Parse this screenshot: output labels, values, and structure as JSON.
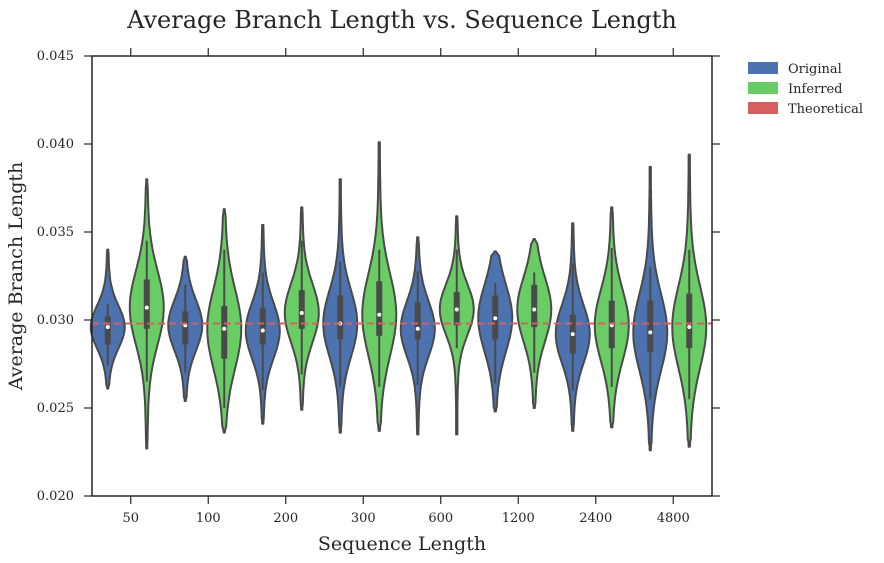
{
  "chart_data": {
    "type": "violin",
    "title": "Average Branch Length vs. Sequence Length",
    "xlabel": "Sequence Length",
    "ylabel": "Average Branch Length",
    "categories": [
      "50",
      "100",
      "200",
      "300",
      "600",
      "1200",
      "2400",
      "4800"
    ],
    "ylim": [
      0.02,
      0.045
    ],
    "yticks": [
      "0.020",
      "0.025",
      "0.030",
      "0.035",
      "0.040",
      "0.045"
    ],
    "grid": false,
    "legend_position": "outside-top-right",
    "reference_line": {
      "name": "Theoretical",
      "value": 0.0298,
      "color": "#d65f5f",
      "style": "dashed"
    },
    "series": [
      {
        "name": "Original",
        "color": "#4c72b0",
        "median": [
          0.0296,
          0.0297,
          0.0294,
          0.0298,
          0.0295,
          0.0301,
          0.0292,
          0.0293
        ],
        "q1": [
          0.0286,
          0.0286,
          0.0286,
          0.0289,
          0.0289,
          0.0289,
          0.0281,
          0.0282
        ],
        "q3": [
          0.0302,
          0.0305,
          0.0307,
          0.0314,
          0.031,
          0.0314,
          0.0303,
          0.0311
        ],
        "whisker_low": [
          0.0274,
          0.027,
          0.026,
          0.0262,
          0.0263,
          0.0264,
          0.026,
          0.0255
        ],
        "whisker_high": [
          0.0309,
          0.032,
          0.0327,
          0.0333,
          0.0328,
          0.0321,
          0.0332,
          0.033
        ],
        "min": [
          0.0261,
          0.0254,
          0.0241,
          0.0236,
          0.0235,
          0.0248,
          0.0237,
          0.0226
        ],
        "max": [
          0.034,
          0.0336,
          0.0354,
          0.038,
          0.0347,
          0.0339,
          0.0355,
          0.0387
        ]
      },
      {
        "name": "Inferred",
        "color": "#6acc65",
        "median": [
          0.0307,
          0.0295,
          0.0304,
          0.0303,
          0.0306,
          0.0306,
          0.0297,
          0.0296
        ],
        "q1": [
          0.0295,
          0.0278,
          0.0295,
          0.0291,
          0.0297,
          0.0296,
          0.0284,
          0.0284
        ],
        "q3": [
          0.0323,
          0.0308,
          0.0317,
          0.0322,
          0.0316,
          0.032,
          0.0311,
          0.0315
        ],
        "whisker_low": [
          0.0265,
          0.025,
          0.0269,
          0.0262,
          0.0284,
          0.027,
          0.0262,
          0.0255
        ],
        "whisker_high": [
          0.0345,
          0.034,
          0.0345,
          0.034,
          0.034,
          0.0327,
          0.0341,
          0.034
        ],
        "min": [
          0.0227,
          0.0236,
          0.0249,
          0.0237,
          0.0235,
          0.025,
          0.0239,
          0.0228
        ],
        "max": [
          0.038,
          0.0363,
          0.0364,
          0.0401,
          0.0359,
          0.0346,
          0.0364,
          0.0394
        ]
      }
    ]
  }
}
